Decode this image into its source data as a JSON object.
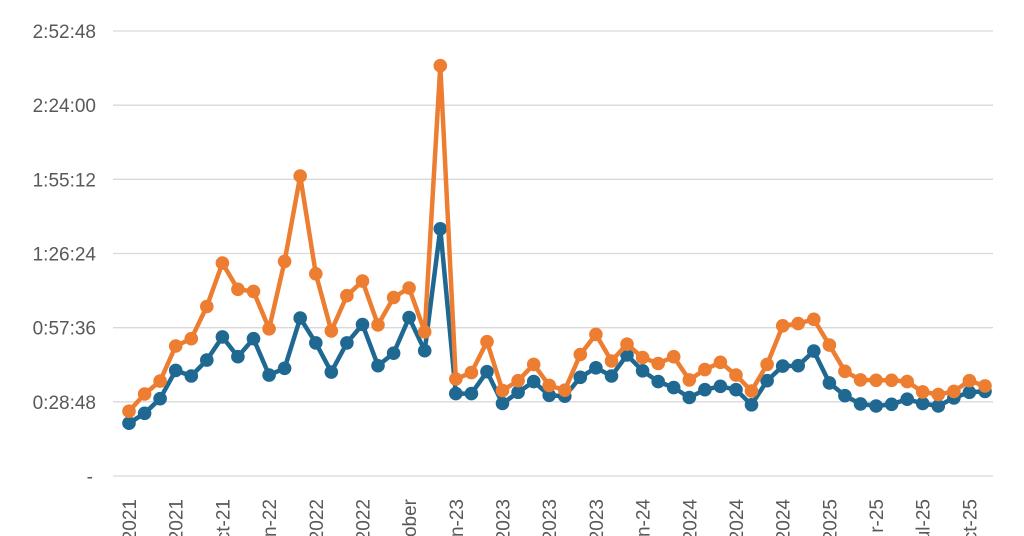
{
  "chart_data": {
    "type": "line",
    "title": "",
    "xlabel": "",
    "ylabel": "",
    "grid": true,
    "legend": "none",
    "y_unit": "h:mm:ss",
    "ylim_seconds": [
      0,
      10368
    ],
    "yticks": [
      {
        "seconds": 0,
        "label": "-"
      },
      {
        "seconds": 1728,
        "label": "0:28:48"
      },
      {
        "seconds": 3456,
        "label": "0:57:36"
      },
      {
        "seconds": 5184,
        "label": "1:26:24"
      },
      {
        "seconds": 6912,
        "label": "1:55:12"
      },
      {
        "seconds": 8640,
        "label": "2:24:00"
      },
      {
        "seconds": 10368,
        "label": "2:52:48"
      }
    ],
    "x_tick_labels": [
      {
        "index": 0,
        "label": "2021"
      },
      {
        "index": 3,
        "label": "2021"
      },
      {
        "index": 6,
        "label": "ct-21"
      },
      {
        "index": 9,
        "label": "an-22"
      },
      {
        "index": 12,
        "label": "2022"
      },
      {
        "index": 15,
        "label": "2022"
      },
      {
        "index": 18,
        "label": "ober"
      },
      {
        "index": 21,
        "label": "an-23"
      },
      {
        "index": 24,
        "label": "2023"
      },
      {
        "index": 27,
        "label": "2023"
      },
      {
        "index": 30,
        "label": "2023"
      },
      {
        "index": 33,
        "label": "an-24"
      },
      {
        "index": 36,
        "label": "2024"
      },
      {
        "index": 39,
        "label": "2024"
      },
      {
        "index": 42,
        "label": "2024"
      },
      {
        "index": 45,
        "label": "2025"
      },
      {
        "index": 48,
        "label": "r-25"
      },
      {
        "index": 51,
        "label": "ul-25"
      },
      {
        "index": 54,
        "label": "ct-25"
      }
    ],
    "n_points": 56,
    "series": [
      {
        "color": "#1f6891",
        "values": [
          1230,
          1460,
          1800,
          2460,
          2330,
          2700,
          3240,
          2780,
          3200,
          2350,
          2510,
          3680,
          3100,
          2420,
          3100,
          3530,
          2570,
          2860,
          3690,
          2920,
          5760,
          1920,
          1920,
          2430,
          1690,
          1950,
          2200,
          1880,
          1860,
          2300,
          2520,
          2330,
          2820,
          2450,
          2200,
          2060,
          1830,
          2010,
          2090,
          2010,
          1660,
          2220,
          2560,
          2570,
          2910,
          2170,
          1870,
          1680,
          1630,
          1670,
          1790,
          1690,
          1630,
          1820,
          1950,
          1970
        ]
      },
      {
        "color": "#ed7d31",
        "values": [
          1510,
          1910,
          2210,
          3030,
          3200,
          3950,
          4960,
          4350,
          4300,
          3430,
          5000,
          6990,
          4710,
          3380,
          4200,
          4540,
          3520,
          4160,
          4380,
          3360,
          9560,
          2260,
          2410,
          3130,
          1990,
          2220,
          2600,
          2110,
          2000,
          2830,
          3300,
          2680,
          3070,
          2760,
          2620,
          2780,
          2240,
          2480,
          2650,
          2350,
          1980,
          2600,
          3500,
          3550,
          3650,
          3050,
          2440,
          2240,
          2230,
          2230,
          2200,
          1960,
          1900,
          1970,
          2220,
          2100
        ]
      }
    ]
  }
}
